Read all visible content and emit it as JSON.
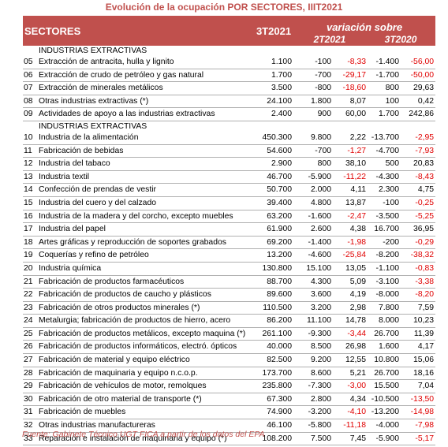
{
  "title": "Evolución de la ocupación POR SECTORES, IIIT2021",
  "header": {
    "sectores": "SECTORES",
    "period": "3T2021",
    "variation": "variación sobre",
    "col_2021": "2T2021",
    "col_2020": "3T2020"
  },
  "groups": [
    {
      "name": "INDUSTRIAS EXTRACTIVAS",
      "rows": [
        {
          "code": "05",
          "name": "Extracción de antracita, hulla y lignito",
          "v": "1.100",
          "a1": "-100",
          "p1": "-8,33",
          "a2": "-1.400",
          "p2": "-56,00"
        },
        {
          "code": "06",
          "name": "Extracción de crudo de petróleo y gas natural",
          "v": "1.700",
          "a1": "-700",
          "p1": "-29,17",
          "a2": "-1.700",
          "p2": "-50,00"
        },
        {
          "code": "07",
          "name": "Extracción de minerales metálicos",
          "v": "3.500",
          "a1": "-800",
          "p1": "-18,60",
          "a2": "800",
          "p2": "29,63"
        },
        {
          "code": "08",
          "name": "Otras industrias extractivas (*)",
          "v": "24.100",
          "a1": "1.800",
          "p1": "8,07",
          "a2": "100",
          "p2": "0,42"
        },
        {
          "code": "09",
          "name": "Actividades de apoyo a las industrias extractivas",
          "v": "2.400",
          "a1": "900",
          "p1": "60,00",
          "a2": "1.700",
          "p2": "242,86"
        }
      ]
    },
    {
      "name": "INDUSTRIAS EXTRACTIVAS",
      "rows": [
        {
          "code": "10",
          "name": "Industria de la alimentación",
          "v": "450.300",
          "a1": "9.800",
          "p1": "2,22",
          "a2": "-13.700",
          "p2": "-2,95"
        },
        {
          "code": "11",
          "name": "Fabricación de bebidas",
          "v": "54.600",
          "a1": "-700",
          "p1": "-1,27",
          "a2": "-4.700",
          "p2": "-7,93"
        },
        {
          "code": "12",
          "name": "Industria del tabaco",
          "v": "2.900",
          "a1": "800",
          "p1": "38,10",
          "a2": "500",
          "p2": "20,83"
        },
        {
          "code": "13",
          "name": "Industria textil",
          "v": "46.700",
          "a1": "-5.900",
          "p1": "-11,22",
          "a2": "-4.300",
          "p2": "-8,43"
        },
        {
          "code": "14",
          "name": "Confección de prendas de vestir",
          "v": "50.700",
          "a1": "2.000",
          "p1": "4,11",
          "a2": "2.300",
          "p2": "4,75"
        },
        {
          "code": "15",
          "name": "Industria del cuero y del calzado",
          "v": "39.400",
          "a1": "4.800",
          "p1": "13,87",
          "a2": "-100",
          "p2": "-0,25"
        },
        {
          "code": "16",
          "name": "Industria de la madera y del corcho, excepto muebles",
          "v": "63.200",
          "a1": "-1.600",
          "p1": "-2,47",
          "a2": "-3.500",
          "p2": "-5,25"
        },
        {
          "code": "17",
          "name": "Industria del papel",
          "v": "61.900",
          "a1": "2.600",
          "p1": "4,38",
          "a2": "16.700",
          "p2": "36,95"
        },
        {
          "code": "18",
          "name": "Artes gráficas y reproducción de soportes grabados",
          "v": "69.200",
          "a1": "-1.400",
          "p1": "-1,98",
          "a2": "-200",
          "p2": "-0,29"
        },
        {
          "code": "19",
          "name": "Coquerías y refino de petróleo",
          "v": "13.200",
          "a1": "-4.600",
          "p1": "-25,84",
          "a2": "-8.200",
          "p2": "-38,32"
        },
        {
          "code": "20",
          "name": "Industria química",
          "v": "130.800",
          "a1": "15.100",
          "p1": "13,05",
          "a2": "-1.100",
          "p2": "-0,83"
        },
        {
          "code": "21",
          "name": "Fabricación de productos farmacéuticos",
          "v": "88.700",
          "a1": "4.300",
          "p1": "5,09",
          "a2": "-3.100",
          "p2": "-3,38"
        },
        {
          "code": "22",
          "name": "Fabricación de productos de caucho y plásticos",
          "v": "89.600",
          "a1": "3.600",
          "p1": "4,19",
          "a2": "-8.000",
          "p2": "-8,20"
        },
        {
          "code": "23",
          "name": "Fabricación de otros productos minerales (*)",
          "v": "110.500",
          "a1": "3.200",
          "p1": "2,98",
          "a2": "7.800",
          "p2": "7,59"
        },
        {
          "code": "24",
          "name": "Metalurgia; fabricación de productos de hierro, acero",
          "v": "86.200",
          "a1": "11.100",
          "p1": "14,78",
          "a2": "8.000",
          "p2": "10,23"
        },
        {
          "code": "25",
          "name": "Fabricación de productos metálicos, excepto maquina (*)",
          "v": "261.100",
          "a1": "-9.300",
          "p1": "-3,44",
          "a2": "26.700",
          "p2": "11,39"
        },
        {
          "code": "26",
          "name": "Fabricación de productos informáticos, electró. ópticos",
          "v": "40.000",
          "a1": "8.500",
          "p1": "26,98",
          "a2": "1.600",
          "p2": "4,17"
        },
        {
          "code": "27",
          "name": "Fabricación de material y equipo eléctrico",
          "v": "82.500",
          "a1": "9.200",
          "p1": "12,55",
          "a2": "10.800",
          "p2": "15,06"
        },
        {
          "code": "28",
          "name": "Fabricación de maquinaria y equipo n.c.o.p.",
          "v": "173.700",
          "a1": "8.600",
          "p1": "5,21",
          "a2": "26.700",
          "p2": "18,16"
        },
        {
          "code": "29",
          "name": "Fabricación de vehículos de motor, remolques",
          "v": "235.800",
          "a1": "-7.300",
          "p1": "-3,00",
          "a2": "15.500",
          "p2": "7,04"
        },
        {
          "code": "30",
          "name": "Fabricación de otro material de transporte (*)",
          "v": "67.300",
          "a1": "2.800",
          "p1": "4,34",
          "a2": "-10.500",
          "p2": "-13,50"
        },
        {
          "code": "31",
          "name": "Fabricación de muebles",
          "v": "74.900",
          "a1": "-3.200",
          "p1": "-4,10",
          "a2": "-13.200",
          "p2": "-14,98"
        },
        {
          "code": "32",
          "name": "Otras industrias manufactureras",
          "v": "46.100",
          "a1": "-5.800",
          "p1": "-11,18",
          "a2": "-4.000",
          "p2": "-7,98"
        },
        {
          "code": "33",
          "name": "Reparación e instalación de maquinaria y equipo (*)",
          "v": "108.200",
          "a1": "7.500",
          "p1": "7,45",
          "a2": "-5.900",
          "p2": "-5,17"
        }
      ]
    }
  ],
  "source": "Fuente: Gabinete Técnico UGT FICA a partir de los datos del EPA",
  "colors": {
    "accent": "#c0504d",
    "negative": "#e00000"
  }
}
